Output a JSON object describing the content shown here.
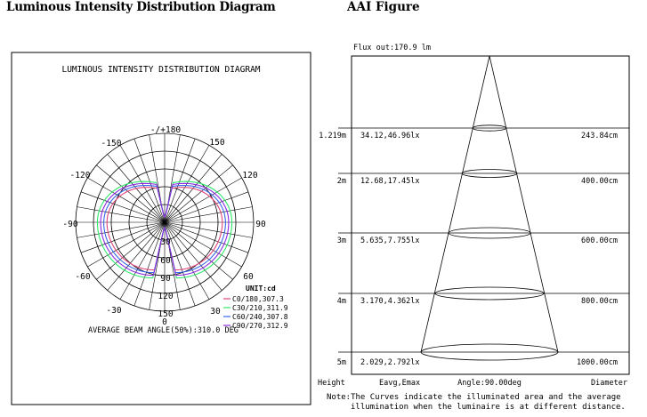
{
  "headings": {
    "left": "Luminous Intensity Distribution Diagram",
    "right": "AAI Figure"
  },
  "polar": {
    "title": "LUMINOUS INTENSITY DISTRIBUTION DIAGRAM",
    "angle_labels": {
      "top": "-/+180",
      "upper_left": [
        "-150",
        "-120",
        "-90",
        "-60",
        "-30"
      ],
      "upper_right": [
        "150",
        "120",
        "90",
        "60",
        "30"
      ],
      "bottom": "0"
    },
    "radial_labels": [
      "30",
      "60",
      "90",
      "120",
      "150"
    ],
    "unit": "UNIT:cd",
    "legend": [
      {
        "label": "C0/180,307.3",
        "color": "#e0457b"
      },
      {
        "label": "C30/210,311.9",
        "color": "#2ee86a"
      },
      {
        "label": "C60/240,307.8",
        "color": "#3a66e8"
      },
      {
        "label": "C90/270,312.9",
        "color": "#8a2be2"
      }
    ],
    "beam_angle": "AVERAGE BEAM ANGLE(50%):310.0 DEG"
  },
  "aai": {
    "flux": "Flux out:170.9 lm",
    "rows": [
      {
        "height": "1.219m",
        "eavg_emax": "34.12,46.96lx",
        "diameter": "243.84cm"
      },
      {
        "height": "2m",
        "eavg_emax": "12.68,17.45lx",
        "diameter": "400.00cm"
      },
      {
        "height": "3m",
        "eavg_emax": "5.635,7.755lx",
        "diameter": "600.00cm"
      },
      {
        "height": "4m",
        "eavg_emax": "3.170,4.362lx",
        "diameter": "800.00cm"
      },
      {
        "height": "5m",
        "eavg_emax": "2.029,2.792lx",
        "diameter": "1000.00cm"
      }
    ],
    "footer": {
      "height": "Height",
      "eavg": "Eavg,Emax",
      "angle": "Angle:90.00deg",
      "diameter": "Diameter"
    },
    "note_line1": "Note:The Curves indicate the illuminated area and the average",
    "note_line2": "illumination when the luminaire is at different distance."
  }
}
